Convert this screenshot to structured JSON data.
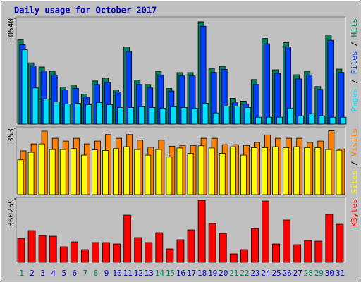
{
  "chart_data": {
    "type": "bar",
    "title": "Daily usage for October 2017",
    "categories": [
      "1",
      "2",
      "3",
      "4",
      "5",
      "6",
      "7",
      "8",
      "9",
      "10",
      "11",
      "12",
      "13",
      "14",
      "15",
      "16",
      "17",
      "18",
      "19",
      "20",
      "21",
      "22",
      "23",
      "24",
      "25",
      "26",
      "27",
      "28",
      "29",
      "30",
      "31"
    ],
    "category_colors": [
      "#00805c",
      "#0000c0",
      "#0000c0",
      "#0000c0",
      "#0000c0",
      "#0000c0",
      "#00805c",
      "#00805c",
      "#0000c0",
      "#0000c0",
      "#0000c0",
      "#0000c0",
      "#0000c0",
      "#00805c",
      "#00805c",
      "#0000c0",
      "#0000c0",
      "#0000c0",
      "#0000c0",
      "#0000c0",
      "#00805c",
      "#00805c",
      "#0000c0",
      "#0000c0",
      "#0000c0",
      "#0000c0",
      "#0000c0",
      "#00805c",
      "#00805c",
      "#0000c0",
      "#0000c0"
    ],
    "legend_separator": " / ",
    "panels": [
      {
        "type": "bar",
        "ylim": [
          0,
          10540
        ],
        "yticks": [
          10540
        ],
        "series": [
          {
            "name": "Hits",
            "color": "#00805c",
            "values": [
              8390,
              6100,
              5690,
              5270,
              3680,
              3880,
              2980,
              4300,
              4580,
              3400,
              7700,
              4370,
              3950,
              5270,
              3540,
              5130,
              5130,
              10190,
              5550,
              5760,
              2570,
              2290,
              4440,
              8530,
              5410,
              8110,
              4920,
              5270,
              3740,
              8880,
              5480
            ]
          },
          {
            "name": "Files",
            "color": "#0040ff",
            "values": [
              7900,
              5800,
              5300,
              4900,
              3400,
              3550,
              2700,
              3950,
              4150,
              3200,
              7250,
              3950,
              3600,
              4900,
              3300,
              4800,
              4800,
              9750,
              5150,
              5450,
              2200,
              2000,
              3950,
              8000,
              5050,
              7700,
              4500,
              4900,
              3450,
              8350,
              5150
            ]
          },
          {
            "name": "Pages",
            "color": "#00e0ff",
            "values": [
              7420,
              3600,
              2500,
              2220,
              2010,
              2080,
              1940,
              2150,
              1940,
              1660,
              1660,
              1730,
              1660,
              1590,
              1730,
              1660,
              1590,
              2080,
              1110,
              1800,
              1800,
              1660,
              690,
              690,
              690,
              1590,
              830,
              1040,
              830,
              690,
              690
            ]
          }
        ]
      },
      {
        "type": "bar",
        "ylim": [
          0,
          353
        ],
        "yticks": [
          353
        ],
        "series": [
          {
            "name": "Visits",
            "color": "#ff8000",
            "values": [
              233,
              270,
              338,
              300,
              285,
              300,
              270,
              285,
              320,
              300,
              320,
              290,
              252,
              290,
              258,
              262,
              262,
              300,
              300,
              266,
              266,
              262,
              278,
              318,
              300,
              300,
              300,
              278,
              285,
              340,
              243
            ]
          },
          {
            "name": "Sites",
            "color": "#ffff00",
            "values": [
              185,
              225,
              270,
              240,
              240,
              245,
              210,
              238,
              235,
              245,
              255,
              240,
              210,
              240,
              200,
              248,
              220,
              260,
              248,
              220,
              255,
              210,
              250,
              250,
              255,
              250,
              255,
              250,
              250,
              240,
              236
            ]
          }
        ]
      },
      {
        "type": "bar",
        "ylim": [
          0,
          360259
        ],
        "yticks": [
          360259
        ],
        "series": [
          {
            "name": "KBytes",
            "color": "#ff0000",
            "values": [
              136000,
              180000,
              152000,
              148000,
              88000,
              116000,
              72000,
              112000,
              112000,
              104000,
              268000,
              140000,
              112000,
              168000,
              76000,
              128000,
              184000,
              352000,
              220000,
              164000,
              48000,
              72000,
              192000,
              348000,
              104000,
              240000,
              100000,
              124000,
              120000,
              272000,
              216000
            ]
          }
        ]
      }
    ]
  }
}
